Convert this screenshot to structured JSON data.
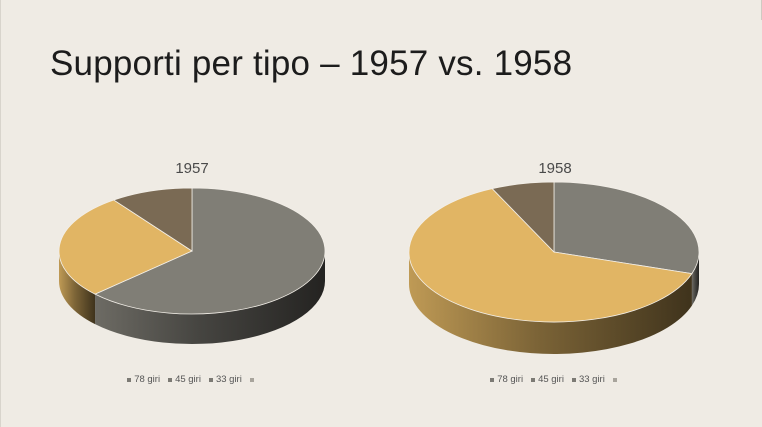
{
  "slide": {
    "title": "Supporti per tipo – 1957 vs. 1958"
  },
  "colors": {
    "gray": "#807e76",
    "gold": "#e1b564",
    "brown": "#7a6a54",
    "empty": "#c8c4bc"
  },
  "chart_data": [
    {
      "type": "pie",
      "style": "3d",
      "title": "1957",
      "categories": [
        "78 giri",
        "45 giri",
        "33 giri",
        ""
      ],
      "values": [
        63,
        27,
        10,
        0
      ],
      "legend_position": "bottom"
    },
    {
      "type": "pie",
      "style": "3d",
      "title": "1958",
      "categories": [
        "78 giri",
        "45 giri",
        "33 giri",
        ""
      ],
      "values": [
        30,
        63,
        7,
        0
      ],
      "legend_position": "bottom"
    }
  ]
}
